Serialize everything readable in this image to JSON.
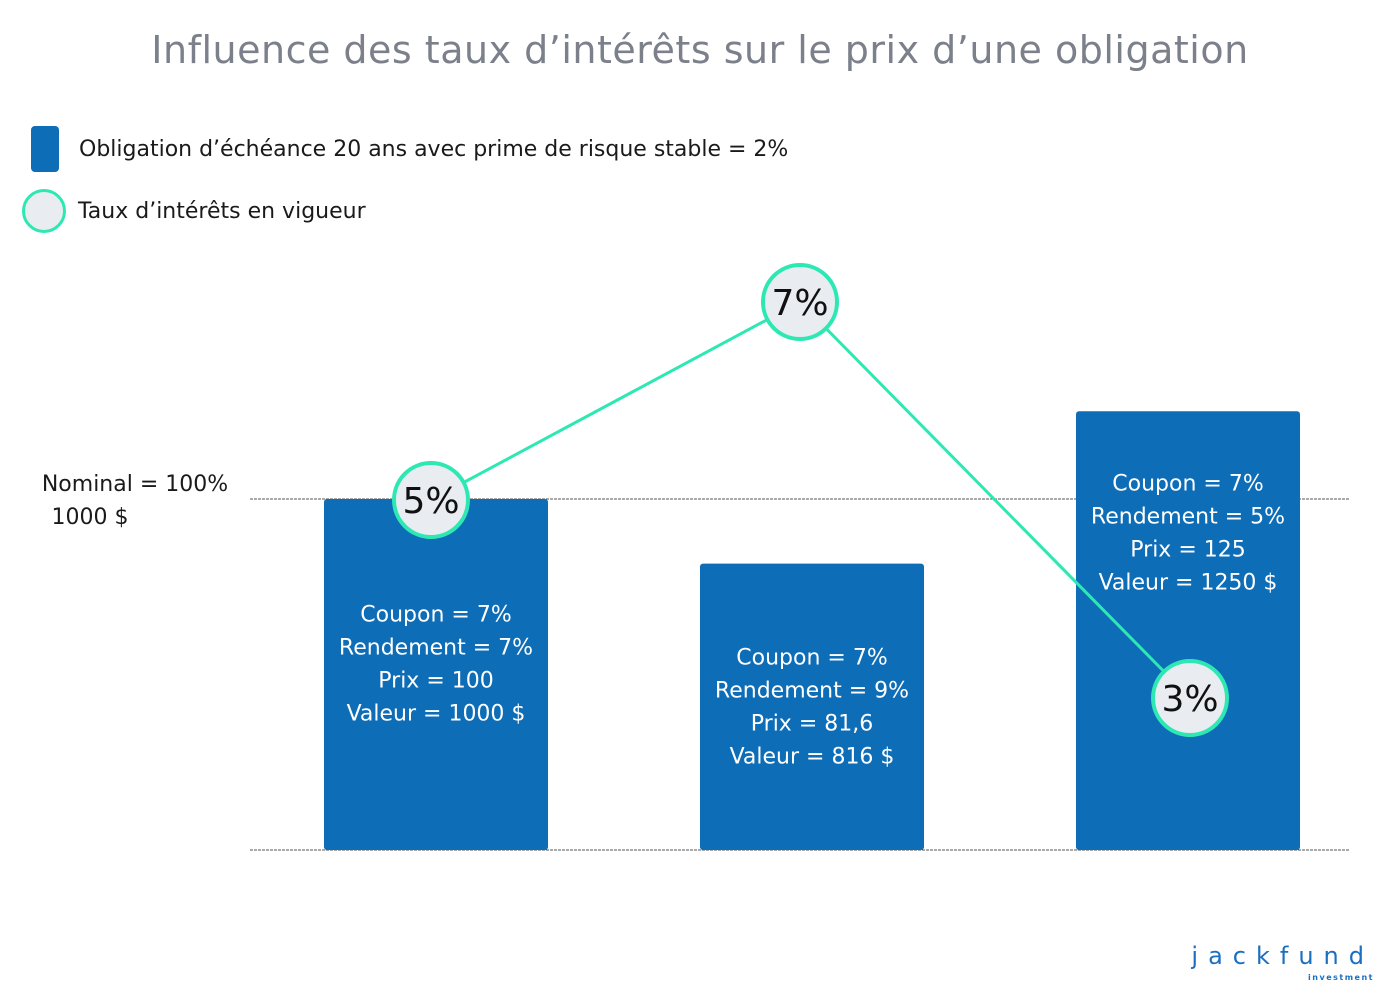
{
  "chart_data": {
    "type": "bar",
    "title": "Influence des taux d’intérêts sur le prix d’une obligation",
    "legend": [
      {
        "label": "Obligation d’échéance 20 ans avec prime de risque stable = 2%",
        "marker": "bar",
        "color": "#0e6db7"
      },
      {
        "label": "Taux d’intérêts en vigueur",
        "marker": "circle",
        "color": "#2ee8b4"
      }
    ],
    "reference_line": {
      "label_line1": "Nominal = 100%",
      "label_line2": "1000 $",
      "value": 1000
    },
    "bars": [
      {
        "value": 1000,
        "labels": [
          "Coupon = 7%",
          "Rendement = 7%",
          "Prix = 100",
          "Valeur = 1000 $"
        ]
      },
      {
        "value": 816,
        "labels": [
          "Coupon = 7%",
          "Rendement = 9%",
          "Prix = 81,6",
          "Valeur = 816 $"
        ]
      },
      {
        "value": 1250,
        "labels": [
          "Coupon = 7%",
          "Rendement = 5%",
          "Prix = 125",
          "Valeur = 1250 $"
        ]
      }
    ],
    "rate_series": {
      "values": [
        5,
        7,
        3
      ],
      "labels": [
        "5%",
        "7%",
        "3%"
      ]
    },
    "colors": {
      "bar": "#0e6db7",
      "line": "#2ee8b4",
      "circle_fill": "#e9edf1",
      "title": "#7b808b"
    }
  },
  "logo": {
    "main": "jackfund",
    "sub": "investment"
  }
}
